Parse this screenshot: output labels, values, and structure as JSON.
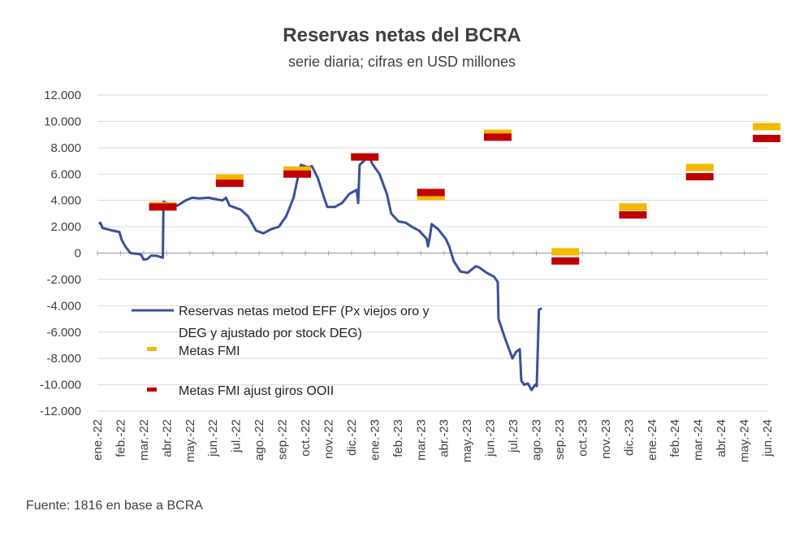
{
  "chart_data": {
    "type": "line",
    "title": "Reservas netas del BCRA",
    "subtitle": "serie diaria; cifras en USD millones",
    "source": "Fuente: 1816 en base a BCRA",
    "ylim": [
      -12000,
      12000
    ],
    "yticks": [
      12000,
      10000,
      8000,
      6000,
      4000,
      2000,
      0,
      -2000,
      -4000,
      -6000,
      -8000,
      -10000,
      -12000
    ],
    "ytick_labels": [
      "12.000",
      "10.000",
      "8.000",
      "6.000",
      "4.000",
      "2.000",
      "0",
      "-2.000",
      "-4.000",
      "-6.000",
      "-8.000",
      "-10.000",
      "-12.000"
    ],
    "xtick_labels": [
      "ene.-22",
      "feb.-22",
      "mar.-22",
      "abr.-22",
      "may.-22",
      "jun.-22",
      "jul.-22",
      "ago.-22",
      "sep.-22",
      "oct.-22",
      "nov.-22",
      "dic.-22",
      "ene.-23",
      "feb.-23",
      "mar.-23",
      "abr.-23",
      "may.-23",
      "jun.-23",
      "jul.-23",
      "ago.-23",
      "sep.-23",
      "oct.-23",
      "nov.-23",
      "dic.-23",
      "ene.-24",
      "feb.-24",
      "mar.-24",
      "abr.-24",
      "may.-24",
      "jun.-24"
    ],
    "grid": true,
    "legend_position": "lower-left",
    "colors": {
      "line": "#3b4f9c",
      "metas": "#f5b800",
      "metas_ajust": "#c00000",
      "grid": "#d9d9d9"
    },
    "series": [
      {
        "name": "Reservas netas metod EFF (Px viejos oro y DEG y ajustado por stock DEG)",
        "kind": "line",
        "x": [
          "2022-01-03",
          "2022-01-05",
          "2022-01-08",
          "2022-01-15",
          "2022-01-22",
          "2022-01-31",
          "2022-02-03",
          "2022-02-08",
          "2022-02-15",
          "2022-02-22",
          "2022-03-01",
          "2022-03-05",
          "2022-03-10",
          "2022-03-15",
          "2022-03-22",
          "2022-03-28",
          "2022-03-31",
          "2022-04-01",
          "2022-04-10",
          "2022-04-20",
          "2022-05-01",
          "2022-05-10",
          "2022-05-20",
          "2022-06-01",
          "2022-06-10",
          "2022-06-20",
          "2022-06-25",
          "2022-06-30",
          "2022-07-05",
          "2022-07-15",
          "2022-07-25",
          "2022-08-05",
          "2022-08-15",
          "2022-08-25",
          "2022-09-05",
          "2022-09-15",
          "2022-09-25",
          "2022-10-01",
          "2022-10-05",
          "2022-10-15",
          "2022-10-20",
          "2022-10-28",
          "2022-11-05",
          "2022-11-10",
          "2022-11-20",
          "2022-11-30",
          "2022-12-10",
          "2022-12-20",
          "2022-12-22",
          "2022-12-24",
          "2022-12-30",
          "2023-01-05",
          "2023-01-10",
          "2023-01-20",
          "2023-01-30",
          "2023-02-05",
          "2023-02-15",
          "2023-02-25",
          "2023-03-05",
          "2023-03-15",
          "2023-03-25",
          "2023-03-27",
          "2023-03-30",
          "2023-04-01",
          "2023-04-10",
          "2023-04-20",
          "2023-04-25",
          "2023-05-01",
          "2023-05-10",
          "2023-05-20",
          "2023-05-31",
          "2023-06-05",
          "2023-06-15",
          "2023-06-25",
          "2023-06-30",
          "2023-07-01",
          "2023-07-10",
          "2023-07-20",
          "2023-07-25",
          "2023-07-30",
          "2023-08-01",
          "2023-08-05",
          "2023-08-10",
          "2023-08-15",
          "2023-08-20",
          "2023-08-22",
          "2023-08-25",
          "2023-08-29"
        ],
        "values": [
          2200,
          2300,
          1900,
          1800,
          1700,
          1600,
          1000,
          500,
          0,
          -50,
          -100,
          -500,
          -450,
          -200,
          -200,
          -300,
          -350,
          3900,
          3700,
          3600,
          4000,
          4200,
          4150,
          4200,
          4100,
          4000,
          4200,
          3600,
          3500,
          3300,
          2800,
          1700,
          1500,
          1800,
          2000,
          2800,
          4200,
          5800,
          6700,
          6500,
          6600,
          5700,
          4300,
          3500,
          3500,
          3800,
          4500,
          4800,
          3800,
          6700,
          7000,
          7500,
          6800,
          6000,
          4500,
          3000,
          2400,
          2300,
          2000,
          1700,
          1100,
          500,
          1400,
          2200,
          1800,
          1100,
          500,
          -600,
          -1400,
          -1500,
          -1000,
          -1100,
          -1500,
          -1800,
          -2200,
          -5000,
          -6500,
          -8000,
          -7500,
          -7300,
          -9700,
          -10000,
          -9900,
          -10400,
          -10000,
          -10100,
          -4300,
          -4200
        ]
      },
      {
        "name": "Metas FMI",
        "kind": "marker",
        "x": [
          "2022-03-31",
          "2022-06-30",
          "2022-09-30",
          "2022-12-31",
          "2023-03-31",
          "2023-06-30",
          "2023-09-30",
          "2023-12-31",
          "2024-03-31",
          "2024-06-30"
        ],
        "values": [
          3600,
          5700,
          6300,
          7300,
          4300,
          9100,
          100,
          3500,
          6500,
          9600
        ]
      },
      {
        "name": "Metas FMI ajust giros OOII",
        "kind": "marker",
        "x": [
          "2022-03-31",
          "2022-06-30",
          "2022-09-30",
          "2022-12-31",
          "2023-03-31",
          "2023-06-30",
          "2023-09-30",
          "2023-12-31",
          "2024-03-31",
          "2024-06-30"
        ],
        "values": [
          3500,
          5300,
          6000,
          7300,
          4600,
          8800,
          -600,
          2900,
          5800,
          8700
        ]
      }
    ]
  },
  "legend": {
    "line_label_1": "Reservas netas metod EFF (Px viejos oro y",
    "line_label_2": "DEG y ajustado por stock DEG)",
    "metas_label": "Metas FMI",
    "metas_ajust_label": "Metas FMI ajust giros OOII"
  }
}
